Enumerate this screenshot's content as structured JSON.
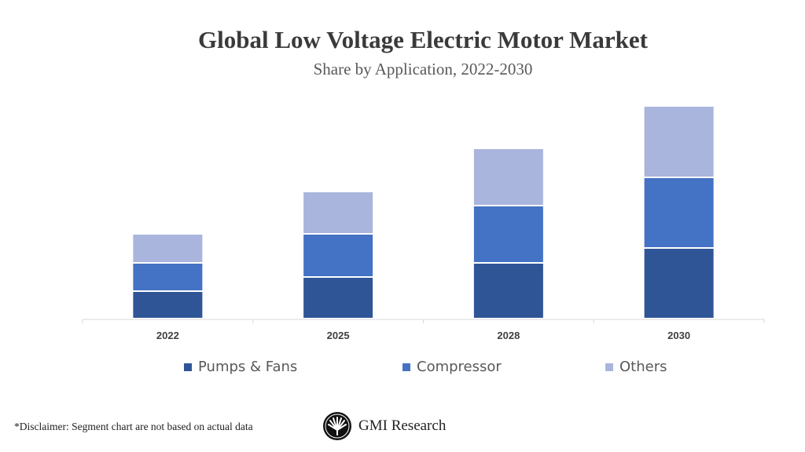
{
  "chart_data": {
    "type": "bar",
    "stacked": true,
    "title": "Global Low Voltage Electric Motor Market",
    "subtitle": "Share by Application, 2022-2030",
    "categories": [
      "2022",
      "2025",
      "2028",
      "2030"
    ],
    "series": [
      {
        "name": "Pumps & Fans",
        "color": "#2F5597",
        "values": [
          35,
          53,
          71,
          90
        ]
      },
      {
        "name": "Compressor",
        "color": "#4472C4",
        "values": [
          36,
          55,
          73,
          90
        ]
      },
      {
        "name": "Others",
        "color": "#A9B5DC",
        "values": [
          37,
          54,
          73,
          91
        ]
      }
    ],
    "ylim": [
      0,
      300
    ],
    "y_axis_shown": false,
    "grid": false,
    "legend_position": "bottom"
  },
  "footer": {
    "disclaimer": "*Disclaimer:  Segment chart are not based on actual data",
    "logo_text": "GMI Research"
  }
}
